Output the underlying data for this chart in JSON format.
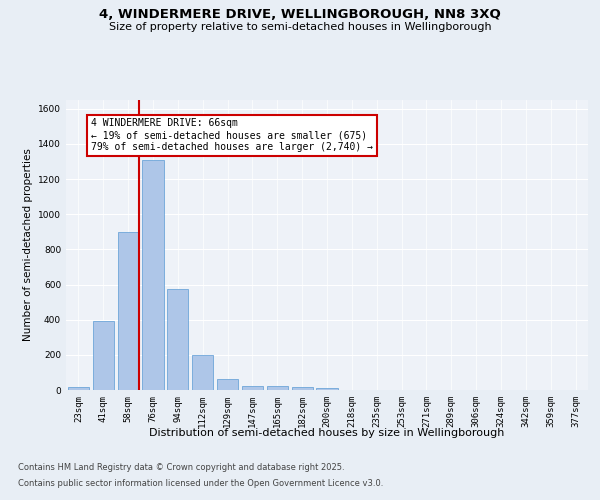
{
  "title": "4, WINDERMERE DRIVE, WELLINGBOROUGH, NN8 3XQ",
  "subtitle": "Size of property relative to semi-detached houses in Wellingborough",
  "xlabel": "Distribution of semi-detached houses by size in Wellingborough",
  "ylabel": "Number of semi-detached properties",
  "categories": [
    "23sqm",
    "41sqm",
    "58sqm",
    "76sqm",
    "94sqm",
    "112sqm",
    "129sqm",
    "147sqm",
    "165sqm",
    "182sqm",
    "200sqm",
    "218sqm",
    "235sqm",
    "253sqm",
    "271sqm",
    "289sqm",
    "306sqm",
    "324sqm",
    "342sqm",
    "359sqm",
    "377sqm"
  ],
  "values": [
    15,
    390,
    900,
    1310,
    575,
    200,
    65,
    25,
    20,
    15,
    10,
    0,
    0,
    0,
    0,
    0,
    0,
    0,
    0,
    0,
    0
  ],
  "bar_color": "#aec6e8",
  "bar_edge_color": "#5b9bd5",
  "property_line_color": "#cc0000",
  "annotation_title": "4 WINDERMERE DRIVE: 66sqm",
  "annotation_line1": "← 19% of semi-detached houses are smaller (675)",
  "annotation_line2": "79% of semi-detached houses are larger (2,740) →",
  "annotation_box_color": "#cc0000",
  "ylim": [
    0,
    1650
  ],
  "yticks": [
    0,
    200,
    400,
    600,
    800,
    1000,
    1200,
    1400,
    1600
  ],
  "bg_color": "#e8eef5",
  "plot_bg_color": "#eef2f8",
  "footer1": "Contains HM Land Registry data © Crown copyright and database right 2025.",
  "footer2": "Contains public sector information licensed under the Open Government Licence v3.0.",
  "title_fontsize": 9.5,
  "subtitle_fontsize": 8,
  "xlabel_fontsize": 8,
  "ylabel_fontsize": 7.5,
  "tick_fontsize": 6.5,
  "annotation_fontsize": 7,
  "footer_fontsize": 6
}
